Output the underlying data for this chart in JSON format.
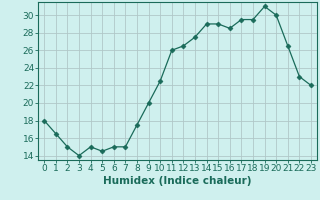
{
  "x": [
    0,
    1,
    2,
    3,
    4,
    5,
    6,
    7,
    8,
    9,
    10,
    11,
    12,
    13,
    14,
    15,
    16,
    17,
    18,
    19,
    20,
    21,
    22,
    23
  ],
  "y": [
    18,
    16.5,
    15,
    14,
    15,
    14.5,
    15,
    15,
    17.5,
    20,
    22.5,
    26,
    26.5,
    27.5,
    29,
    29,
    28.5,
    29.5,
    29.5,
    31,
    30,
    26.5,
    23,
    22
  ],
  "line_color": "#1a6b5a",
  "marker": "D",
  "marker_size": 2.5,
  "bg_color": "#cff0ee",
  "grid_color": "#b0c8c8",
  "xlabel": "Humidex (Indice chaleur)",
  "ylabel": "",
  "xlim": [
    -0.5,
    23.5
  ],
  "ylim": [
    13.5,
    31.5
  ],
  "yticks": [
    14,
    16,
    18,
    20,
    22,
    24,
    26,
    28,
    30
  ],
  "xticks": [
    0,
    1,
    2,
    3,
    4,
    5,
    6,
    7,
    8,
    9,
    10,
    11,
    12,
    13,
    14,
    15,
    16,
    17,
    18,
    19,
    20,
    21,
    22,
    23
  ],
  "tick_label_fontsize": 6.5,
  "xlabel_fontsize": 7.5,
  "spine_color": "#1a6b5a",
  "tick_color": "#1a6b5a"
}
